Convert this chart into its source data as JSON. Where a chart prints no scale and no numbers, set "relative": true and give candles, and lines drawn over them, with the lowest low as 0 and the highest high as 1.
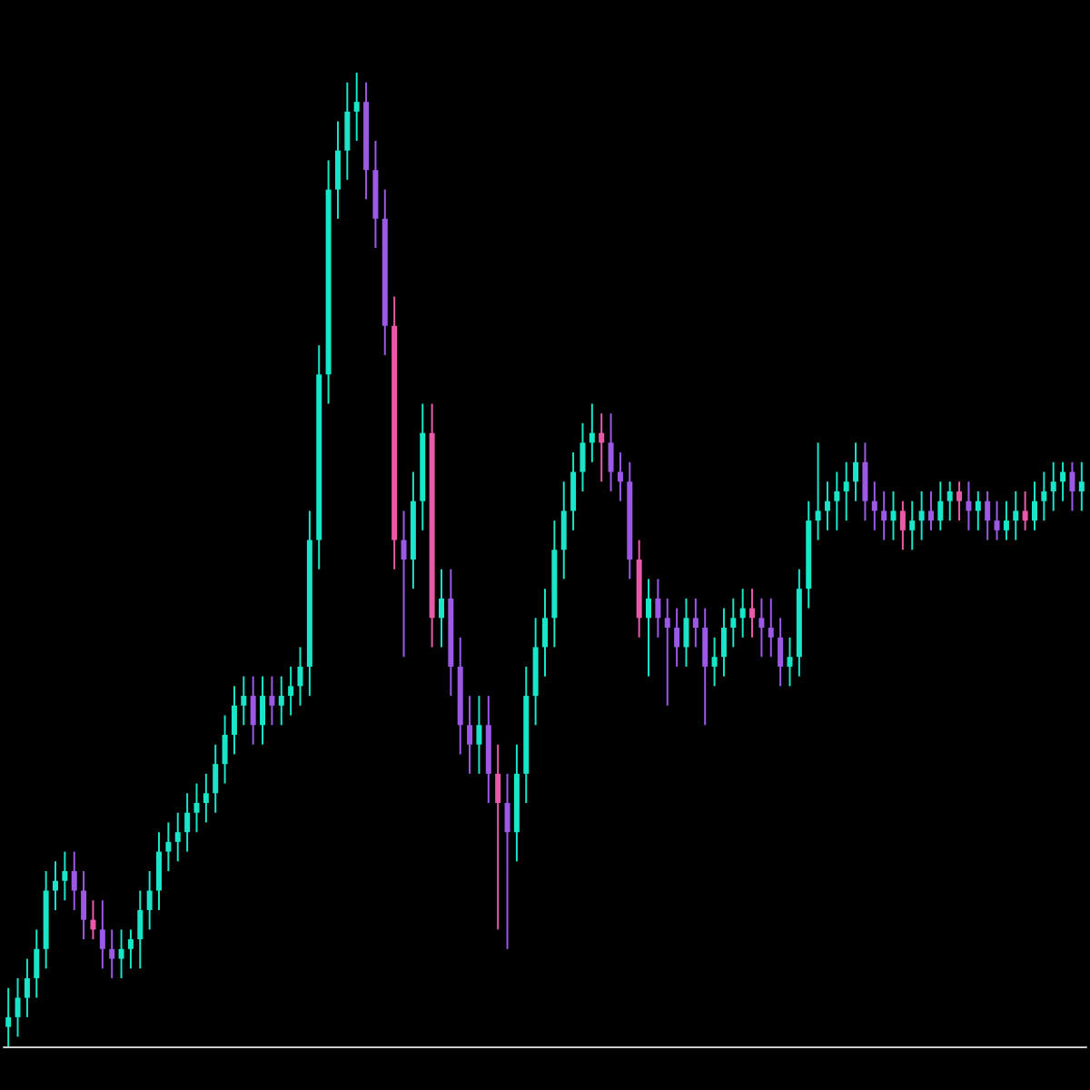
{
  "chart_data": {
    "type": "candlestick",
    "relative": true,
    "grid": false,
    "categories": [
      null,
      null,
      null,
      null,
      null,
      null,
      null,
      null,
      null,
      null,
      null,
      null,
      null,
      null,
      null,
      null,
      null,
      null,
      null,
      null,
      null,
      null,
      null,
      null,
      null,
      null,
      null,
      null,
      null,
      null,
      null,
      null,
      null,
      null,
      null,
      null,
      null,
      null,
      null,
      null,
      null,
      null,
      null,
      null,
      null,
      null,
      null,
      null,
      null,
      null,
      null,
      null,
      null,
      null,
      null,
      null,
      null,
      null,
      null,
      null,
      null,
      null,
      null,
      null,
      null,
      null,
      null,
      null,
      null,
      null,
      null,
      null,
      null,
      null,
      null,
      null,
      null,
      null,
      null,
      null,
      null,
      null,
      null,
      null,
      null,
      null,
      null,
      null,
      null,
      null,
      null,
      null,
      null,
      null,
      null,
      null,
      null,
      null,
      null,
      null,
      null,
      null,
      null,
      null,
      null,
      null,
      null,
      null,
      null,
      null,
      null,
      null,
      null,
      null,
      null
    ],
    "ohlc": [
      [
        0.02,
        0.06,
        0.0,
        0.03
      ],
      [
        0.03,
        0.07,
        0.01,
        0.05
      ],
      [
        0.05,
        0.09,
        0.03,
        0.07
      ],
      [
        0.07,
        0.12,
        0.05,
        0.1
      ],
      [
        0.1,
        0.18,
        0.08,
        0.16
      ],
      [
        0.16,
        0.19,
        0.14,
        0.17
      ],
      [
        0.17,
        0.2,
        0.15,
        0.18
      ],
      [
        0.18,
        0.2,
        0.14,
        0.16
      ],
      [
        0.16,
        0.18,
        0.11,
        0.13
      ],
      [
        0.13,
        0.15,
        0.11,
        0.12
      ],
      [
        0.12,
        0.15,
        0.08,
        0.1
      ],
      [
        0.1,
        0.12,
        0.07,
        0.09
      ],
      [
        0.09,
        0.12,
        0.07,
        0.1
      ],
      [
        0.1,
        0.12,
        0.08,
        0.11
      ],
      [
        0.11,
        0.16,
        0.08,
        0.14
      ],
      [
        0.14,
        0.18,
        0.12,
        0.16
      ],
      [
        0.16,
        0.22,
        0.14,
        0.2
      ],
      [
        0.2,
        0.23,
        0.18,
        0.21
      ],
      [
        0.21,
        0.24,
        0.19,
        0.22
      ],
      [
        0.22,
        0.26,
        0.2,
        0.24
      ],
      [
        0.24,
        0.27,
        0.22,
        0.25
      ],
      [
        0.25,
        0.28,
        0.23,
        0.26
      ],
      [
        0.26,
        0.31,
        0.24,
        0.29
      ],
      [
        0.29,
        0.34,
        0.27,
        0.32
      ],
      [
        0.32,
        0.37,
        0.3,
        0.35
      ],
      [
        0.35,
        0.38,
        0.33,
        0.36
      ],
      [
        0.36,
        0.38,
        0.31,
        0.33
      ],
      [
        0.33,
        0.38,
        0.31,
        0.36
      ],
      [
        0.36,
        0.38,
        0.33,
        0.35
      ],
      [
        0.35,
        0.38,
        0.33,
        0.36
      ],
      [
        0.36,
        0.39,
        0.34,
        0.37
      ],
      [
        0.37,
        0.41,
        0.35,
        0.39
      ],
      [
        0.39,
        0.55,
        0.36,
        0.52
      ],
      [
        0.52,
        0.72,
        0.49,
        0.69
      ],
      [
        0.69,
        0.91,
        0.66,
        0.88
      ],
      [
        0.88,
        0.95,
        0.85,
        0.92
      ],
      [
        0.92,
        0.99,
        0.89,
        0.96
      ],
      [
        0.96,
        1.0,
        0.93,
        0.97
      ],
      [
        0.97,
        0.99,
        0.87,
        0.9
      ],
      [
        0.9,
        0.93,
        0.82,
        0.85
      ],
      [
        0.85,
        0.88,
        0.71,
        0.74
      ],
      [
        0.74,
        0.77,
        0.49,
        0.52
      ],
      [
        0.52,
        0.55,
        0.4,
        0.5
      ],
      [
        0.5,
        0.59,
        0.47,
        0.56
      ],
      [
        0.56,
        0.66,
        0.53,
        0.63
      ],
      [
        0.63,
        0.66,
        0.41,
        0.44
      ],
      [
        0.44,
        0.49,
        0.41,
        0.46
      ],
      [
        0.46,
        0.49,
        0.36,
        0.39
      ],
      [
        0.39,
        0.42,
        0.3,
        0.33
      ],
      [
        0.33,
        0.36,
        0.28,
        0.31
      ],
      [
        0.31,
        0.36,
        0.28,
        0.33
      ],
      [
        0.33,
        0.36,
        0.25,
        0.28
      ],
      [
        0.28,
        0.31,
        0.12,
        0.25
      ],
      [
        0.25,
        0.28,
        0.1,
        0.22
      ],
      [
        0.22,
        0.31,
        0.19,
        0.28
      ],
      [
        0.28,
        0.39,
        0.25,
        0.36
      ],
      [
        0.36,
        0.44,
        0.33,
        0.41
      ],
      [
        0.41,
        0.47,
        0.38,
        0.44
      ],
      [
        0.44,
        0.54,
        0.41,
        0.51
      ],
      [
        0.51,
        0.58,
        0.48,
        0.55
      ],
      [
        0.55,
        0.61,
        0.53,
        0.59
      ],
      [
        0.59,
        0.64,
        0.57,
        0.62
      ],
      [
        0.62,
        0.66,
        0.6,
        0.63
      ],
      [
        0.63,
        0.65,
        0.58,
        0.62
      ],
      [
        0.62,
        0.65,
        0.57,
        0.59
      ],
      [
        0.59,
        0.61,
        0.56,
        0.58
      ],
      [
        0.58,
        0.6,
        0.48,
        0.5
      ],
      [
        0.5,
        0.52,
        0.42,
        0.44
      ],
      [
        0.44,
        0.48,
        0.38,
        0.46
      ],
      [
        0.46,
        0.48,
        0.42,
        0.44
      ],
      [
        0.44,
        0.46,
        0.35,
        0.43
      ],
      [
        0.43,
        0.45,
        0.39,
        0.41
      ],
      [
        0.41,
        0.46,
        0.39,
        0.44
      ],
      [
        0.44,
        0.46,
        0.41,
        0.43
      ],
      [
        0.43,
        0.45,
        0.33,
        0.39
      ],
      [
        0.39,
        0.42,
        0.37,
        0.4
      ],
      [
        0.4,
        0.45,
        0.38,
        0.43
      ],
      [
        0.43,
        0.46,
        0.41,
        0.44
      ],
      [
        0.44,
        0.47,
        0.42,
        0.45
      ],
      [
        0.45,
        0.47,
        0.42,
        0.44
      ],
      [
        0.44,
        0.46,
        0.4,
        0.43
      ],
      [
        0.43,
        0.46,
        0.4,
        0.42
      ],
      [
        0.42,
        0.44,
        0.37,
        0.39
      ],
      [
        0.39,
        0.42,
        0.37,
        0.4
      ],
      [
        0.4,
        0.49,
        0.38,
        0.47
      ],
      [
        0.47,
        0.56,
        0.45,
        0.54
      ],
      [
        0.54,
        0.62,
        0.52,
        0.55
      ],
      [
        0.55,
        0.58,
        0.53,
        0.56
      ],
      [
        0.56,
        0.59,
        0.53,
        0.57
      ],
      [
        0.57,
        0.6,
        0.54,
        0.58
      ],
      [
        0.58,
        0.62,
        0.56,
        0.6
      ],
      [
        0.6,
        0.62,
        0.54,
        0.56
      ],
      [
        0.56,
        0.58,
        0.53,
        0.55
      ],
      [
        0.55,
        0.57,
        0.52,
        0.54
      ],
      [
        0.54,
        0.57,
        0.52,
        0.55
      ],
      [
        0.55,
        0.56,
        0.51,
        0.53
      ],
      [
        0.53,
        0.56,
        0.51,
        0.54
      ],
      [
        0.54,
        0.57,
        0.52,
        0.55
      ],
      [
        0.55,
        0.57,
        0.53,
        0.54
      ],
      [
        0.54,
        0.58,
        0.53,
        0.56
      ],
      [
        0.56,
        0.58,
        0.54,
        0.57
      ],
      [
        0.57,
        0.58,
        0.54,
        0.56
      ],
      [
        0.56,
        0.58,
        0.53,
        0.55
      ],
      [
        0.55,
        0.57,
        0.53,
        0.56
      ],
      [
        0.56,
        0.57,
        0.52,
        0.54
      ],
      [
        0.54,
        0.56,
        0.52,
        0.53
      ],
      [
        0.53,
        0.56,
        0.52,
        0.54
      ],
      [
        0.54,
        0.57,
        0.52,
        0.55
      ],
      [
        0.55,
        0.57,
        0.53,
        0.54
      ],
      [
        0.54,
        0.58,
        0.53,
        0.56
      ],
      [
        0.56,
        0.59,
        0.54,
        0.57
      ],
      [
        0.57,
        0.6,
        0.55,
        0.58
      ],
      [
        0.58,
        0.6,
        0.56,
        0.59
      ],
      [
        0.59,
        0.6,
        0.55,
        0.57
      ],
      [
        0.57,
        0.6,
        0.55,
        0.58
      ]
    ],
    "colors": [
      "#19e6c8",
      "#19e6c8",
      "#19e6c8",
      "#19e6c8",
      "#19e6c8",
      "#19e6c8",
      "#19e6c8",
      "#9b59e6",
      "#9b59e6",
      "#e85aa8",
      "#9b59e6",
      "#9b59e6",
      "#19e6c8",
      "#19e6c8",
      "#19e6c8",
      "#19e6c8",
      "#19e6c8",
      "#19e6c8",
      "#19e6c8",
      "#19e6c8",
      "#19e6c8",
      "#19e6c8",
      "#19e6c8",
      "#19e6c8",
      "#19e6c8",
      "#19e6c8",
      "#9b59e6",
      "#19e6c8",
      "#9b59e6",
      "#19e6c8",
      "#19e6c8",
      "#19e6c8",
      "#19e6c8",
      "#19e6c8",
      "#19e6c8",
      "#19e6c8",
      "#19e6c8",
      "#19e6c8",
      "#9b59e6",
      "#9b59e6",
      "#9b59e6",
      "#e85aa8",
      "#9b59e6",
      "#19e6c8",
      "#19e6c8",
      "#e85aa8",
      "#19e6c8",
      "#9b59e6",
      "#9b59e6",
      "#9b59e6",
      "#19e6c8",
      "#9b59e6",
      "#e85aa8",
      "#9b59e6",
      "#19e6c8",
      "#19e6c8",
      "#19e6c8",
      "#19e6c8",
      "#19e6c8",
      "#19e6c8",
      "#19e6c8",
      "#19e6c8",
      "#19e6c8",
      "#e85aa8",
      "#9b59e6",
      "#9b59e6",
      "#9b59e6",
      "#e85aa8",
      "#19e6c8",
      "#9b59e6",
      "#9b59e6",
      "#9b59e6",
      "#19e6c8",
      "#9b59e6",
      "#9b59e6",
      "#19e6c8",
      "#19e6c8",
      "#19e6c8",
      "#19e6c8",
      "#e85aa8",
      "#9b59e6",
      "#9b59e6",
      "#9b59e6",
      "#19e6c8",
      "#19e6c8",
      "#19e6c8",
      "#19e6c8",
      "#19e6c8",
      "#19e6c8",
      "#19e6c8",
      "#19e6c8",
      "#9b59e6",
      "#9b59e6",
      "#9b59e6",
      "#19e6c8",
      "#e85aa8",
      "#19e6c8",
      "#19e6c8",
      "#9b59e6",
      "#19e6c8",
      "#19e6c8",
      "#e85aa8",
      "#9b59e6",
      "#19e6c8",
      "#9b59e6",
      "#9b59e6",
      "#19e6c8",
      "#19e6c8",
      "#e85aa8",
      "#19e6c8",
      "#19e6c8",
      "#19e6c8",
      "#19e6c8",
      "#9b59e6",
      "#19e6c8"
    ]
  }
}
